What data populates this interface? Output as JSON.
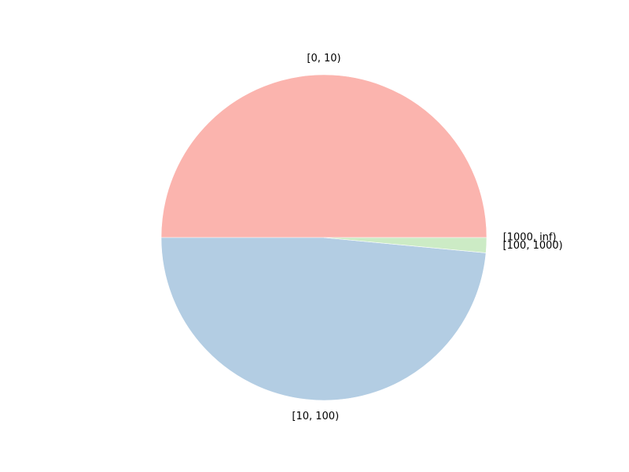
{
  "chart_data": {
    "type": "pie",
    "title": "",
    "start_angle_deg": 0,
    "direction": "counterclockwise",
    "slices": [
      {
        "label": "[0, 10)",
        "value": 50.0,
        "color": "#fbb4ae"
      },
      {
        "label": "[10, 100)",
        "value": 48.5,
        "color": "#b3cde3"
      },
      {
        "label": "[100, 1000)",
        "value": 1.5,
        "color": "#ccebc5"
      },
      {
        "label": "[1000, inf)",
        "value": 0.0,
        "color": "#decbe4"
      }
    ],
    "legend": "none",
    "grid": false
  }
}
